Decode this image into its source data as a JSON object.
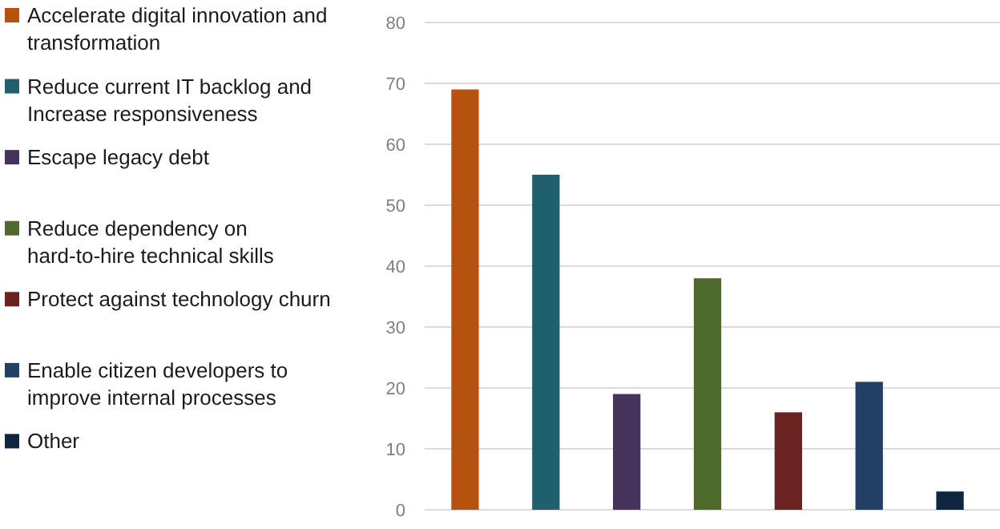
{
  "chart_data": {
    "type": "bar",
    "categories": [
      null,
      null,
      null,
      null,
      null,
      null,
      null
    ],
    "series": [
      {
        "name": "Accelerate digital innovation and transformation",
        "color": "#b5520f",
        "values": [
          69,
          null,
          null,
          null,
          null,
          null,
          null
        ]
      },
      {
        "name": "Reduce current IT backlog and Increase responsiveness",
        "color": "#1f5f6e",
        "values": [
          null,
          55,
          null,
          null,
          null,
          null,
          null
        ]
      },
      {
        "name": "Escape legacy debt",
        "color": "#46325a",
        "values": [
          null,
          null,
          19,
          null,
          null,
          null,
          null
        ]
      },
      {
        "name": "Reduce dependency on hard-to-hire technical skills",
        "color": "#4e6a2c",
        "values": [
          null,
          null,
          null,
          38,
          null,
          null,
          null
        ]
      },
      {
        "name": "Protect against technology churn",
        "color": "#6b2322",
        "values": [
          null,
          null,
          null,
          null,
          16,
          null,
          null
        ]
      },
      {
        "name": "Enable citizen developers to improve internal processes",
        "color": "#223f66",
        "values": [
          null,
          null,
          null,
          null,
          null,
          21,
          null
        ]
      },
      {
        "name": "Other",
        "color": "#0f2640",
        "values": [
          null,
          null,
          null,
          null,
          null,
          null,
          3
        ]
      }
    ],
    "ylim": [
      0,
      80
    ],
    "yticks": [
      0,
      10,
      20,
      30,
      40,
      50,
      60,
      70,
      80
    ],
    "grid": "y",
    "legend": "left"
  }
}
